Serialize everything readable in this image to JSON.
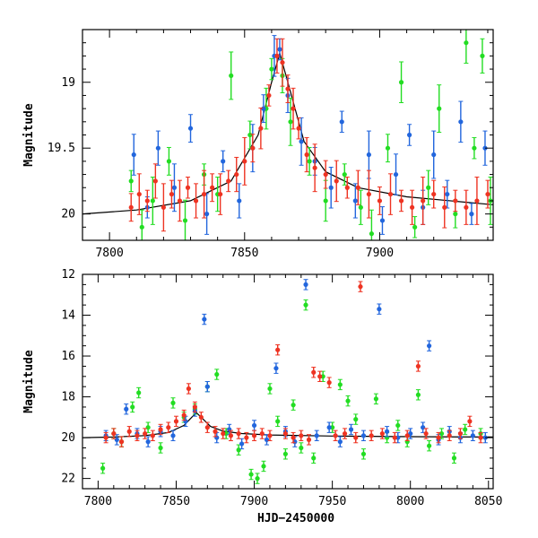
{
  "chart_data": [
    {
      "type": "scatter",
      "title": "",
      "xlabel": "",
      "ylabel": "Magnitude",
      "xlim": [
        7790,
        7942
      ],
      "ylim": [
        20.2,
        18.6
      ],
      "y_inverted": true,
      "xticks": [
        7800,
        7850,
        7900
      ],
      "yticks": [
        19,
        19.5,
        20
      ],
      "ytick_labels": [
        "19",
        "19.5",
        "20"
      ],
      "series": [
        {
          "color": "#22dd22",
          "description": "green photometry points with error bars",
          "points": [
            [
              7808,
              19.75
            ],
            [
              7812,
              20.1
            ],
            [
              7816,
              19.9
            ],
            [
              7822,
              19.6
            ],
            [
              7828,
              20.05
            ],
            [
              7835,
              19.7
            ],
            [
              7840,
              19.85
            ],
            [
              7845,
              18.95
            ],
            [
              7852,
              19.4
            ],
            [
              7858,
              19.2
            ],
            [
              7860,
              18.9
            ],
            [
              7864,
              18.95
            ],
            [
              7867,
              19.3
            ],
            [
              7874,
              19.6
            ],
            [
              7880,
              19.9
            ],
            [
              7887,
              19.7
            ],
            [
              7893,
              19.95
            ],
            [
              7897,
              20.15
            ],
            [
              7903,
              19.5
            ],
            [
              7908,
              19.0
            ],
            [
              7913,
              20.1
            ],
            [
              7918,
              19.8
            ],
            [
              7922,
              19.2
            ],
            [
              7928,
              20.0
            ],
            [
              7932,
              18.7
            ],
            [
              7935,
              19.5
            ],
            [
              7938,
              18.8
            ],
            [
              7941,
              19.9
            ]
          ]
        },
        {
          "color": "#2266dd",
          "description": "blue photometry points with error bars",
          "points": [
            [
              7809,
              19.55
            ],
            [
              7814,
              19.95
            ],
            [
              7818,
              19.5
            ],
            [
              7824,
              19.8
            ],
            [
              7830,
              19.35
            ],
            [
              7836,
              20.0
            ],
            [
              7842,
              19.6
            ],
            [
              7848,
              19.9
            ],
            [
              7853,
              19.5
            ],
            [
              7857,
              19.2
            ],
            [
              7861,
              18.8
            ],
            [
              7863,
              18.75
            ],
            [
              7866,
              19.1
            ],
            [
              7871,
              19.45
            ],
            [
              7876,
              19.6
            ],
            [
              7882,
              19.8
            ],
            [
              7886,
              19.3
            ],
            [
              7891,
              19.9
            ],
            [
              7896,
              19.55
            ],
            [
              7901,
              20.05
            ],
            [
              7906,
              19.7
            ],
            [
              7911,
              19.4
            ],
            [
              7916,
              19.95
            ],
            [
              7920,
              19.55
            ],
            [
              7925,
              19.85
            ],
            [
              7930,
              19.3
            ],
            [
              7934,
              20.0
            ],
            [
              7939,
              19.5
            ]
          ]
        },
        {
          "color": "#ee3322",
          "description": "red photometry points with error bars",
          "points": [
            [
              7808,
              19.95
            ],
            [
              7811,
              19.85
            ],
            [
              7814,
              19.9
            ],
            [
              7817,
              19.75
            ],
            [
              7820,
              19.95
            ],
            [
              7823,
              19.85
            ],
            [
              7826,
              19.9
            ],
            [
              7829,
              19.8
            ],
            [
              7832,
              19.9
            ],
            [
              7835,
              19.85
            ],
            [
              7838,
              19.8
            ],
            [
              7841,
              19.85
            ],
            [
              7844,
              19.75
            ],
            [
              7847,
              19.7
            ],
            [
              7850,
              19.6
            ],
            [
              7853,
              19.5
            ],
            [
              7856,
              19.35
            ],
            [
              7859,
              19.1
            ],
            [
              7862,
              18.8
            ],
            [
              7864,
              18.85
            ],
            [
              7866,
              19.05
            ],
            [
              7868,
              19.2
            ],
            [
              7870,
              19.35
            ],
            [
              7873,
              19.55
            ],
            [
              7876,
              19.65
            ],
            [
              7880,
              19.7
            ],
            [
              7884,
              19.75
            ],
            [
              7888,
              19.8
            ],
            [
              7892,
              19.8
            ],
            [
              7896,
              19.85
            ],
            [
              7900,
              19.9
            ],
            [
              7904,
              19.85
            ],
            [
              7908,
              19.9
            ],
            [
              7912,
              19.95
            ],
            [
              7916,
              19.9
            ],
            [
              7920,
              19.85
            ],
            [
              7924,
              19.95
            ],
            [
              7928,
              19.9
            ],
            [
              7932,
              19.95
            ],
            [
              7936,
              19.9
            ],
            [
              7940,
              19.85
            ]
          ]
        }
      ],
      "model_curve": [
        [
          7790,
          20.0
        ],
        [
          7810,
          19.97
        ],
        [
          7830,
          19.9
        ],
        [
          7845,
          19.75
        ],
        [
          7855,
          19.4
        ],
        [
          7860,
          19.0
        ],
        [
          7863,
          18.78
        ],
        [
          7866,
          19.0
        ],
        [
          7872,
          19.45
        ],
        [
          7880,
          19.68
        ],
        [
          7892,
          19.8
        ],
        [
          7910,
          19.87
        ],
        [
          7942,
          19.93
        ]
      ]
    },
    {
      "type": "scatter",
      "title": "",
      "xlabel": "HJD−2450000",
      "ylabel": "Magnitude",
      "xlim": [
        7790,
        8053
      ],
      "ylim": [
        22.5,
        12
      ],
      "y_inverted": true,
      "xticks": [
        7800,
        7850,
        7900,
        7950,
        8000,
        8050
      ],
      "yticks": [
        12,
        14,
        16,
        18,
        20,
        22
      ],
      "series": [
        {
          "color": "#22dd22",
          "description": "green photometry points",
          "points": [
            [
              7803,
              21.5
            ],
            [
              7810,
              19.8
            ],
            [
              7815,
              20.2
            ],
            [
              7822,
              18.5
            ],
            [
              7826,
              17.8
            ],
            [
              7832,
              19.5
            ],
            [
              7840,
              20.5
            ],
            [
              7848,
              18.3
            ],
            [
              7855,
              19.0
            ],
            [
              7862,
              18.6
            ],
            [
              7870,
              17.5
            ],
            [
              7876,
              16.9
            ],
            [
              7882,
              19.8
            ],
            [
              7890,
              20.6
            ],
            [
              7898,
              21.8
            ],
            [
              7902,
              22.0
            ],
            [
              7906,
              21.4
            ],
            [
              7910,
              17.6
            ],
            [
              7915,
              19.2
            ],
            [
              7920,
              20.8
            ],
            [
              7925,
              18.4
            ],
            [
              7930,
              20.5
            ],
            [
              7933,
              13.5
            ],
            [
              7938,
              21.0
            ],
            [
              7944,
              17.0
            ],
            [
              7950,
              19.5
            ],
            [
              7955,
              17.4
            ],
            [
              7960,
              18.2
            ],
            [
              7965,
              19.1
            ],
            [
              7970,
              20.8
            ],
            [
              7978,
              18.1
            ],
            [
              7985,
              20.0
            ],
            [
              7992,
              19.4
            ],
            [
              7998,
              20.2
            ],
            [
              8005,
              17.9
            ],
            [
              8012,
              20.4
            ],
            [
              8020,
              19.8
            ],
            [
              8028,
              21.0
            ],
            [
              8035,
              19.6
            ],
            [
              8045,
              19.8
            ]
          ]
        },
        {
          "color": "#2266dd",
          "description": "blue photometry points",
          "points": [
            [
              7805,
              19.9
            ],
            [
              7812,
              20.1
            ],
            [
              7818,
              18.6
            ],
            [
              7825,
              19.8
            ],
            [
              7832,
              20.2
            ],
            [
              7840,
              19.7
            ],
            [
              7848,
              19.9
            ],
            [
              7856,
              19.2
            ],
            [
              7862,
              18.7
            ],
            [
              7868,
              14.2
            ],
            [
              7870,
              17.5
            ],
            [
              7876,
              20.0
            ],
            [
              7884,
              19.6
            ],
            [
              7892,
              20.3
            ],
            [
              7900,
              19.4
            ],
            [
              7908,
              20.1
            ],
            [
              7914,
              16.6
            ],
            [
              7920,
              19.7
            ],
            [
              7926,
              20.2
            ],
            [
              7933,
              12.5
            ],
            [
              7940,
              19.9
            ],
            [
              7948,
              19.5
            ],
            [
              7955,
              20.2
            ],
            [
              7962,
              19.6
            ],
            [
              7970,
              19.9
            ],
            [
              7980,
              13.7
            ],
            [
              7985,
              19.7
            ],
            [
              7992,
              20.0
            ],
            [
              8000,
              19.8
            ],
            [
              8008,
              19.5
            ],
            [
              8012,
              15.5
            ],
            [
              8018,
              20.1
            ],
            [
              8025,
              19.7
            ],
            [
              8032,
              20.0
            ],
            [
              8040,
              19.9
            ],
            [
              8048,
              20.0
            ]
          ]
        },
        {
          "color": "#ee3322",
          "description": "red photometry points",
          "points": [
            [
              7805,
              20.0
            ],
            [
              7810,
              19.8
            ],
            [
              7815,
              20.2
            ],
            [
              7820,
              19.7
            ],
            [
              7825,
              19.9
            ],
            [
              7830,
              19.8
            ],
            [
              7835,
              19.9
            ],
            [
              7840,
              19.6
            ],
            [
              7845,
              19.5
            ],
            [
              7850,
              19.2
            ],
            [
              7855,
              18.9
            ],
            [
              7858,
              17.6
            ],
            [
              7862,
              18.5
            ],
            [
              7866,
              19.0
            ],
            [
              7870,
              19.5
            ],
            [
              7875,
              19.7
            ],
            [
              7880,
              19.8
            ],
            [
              7885,
              19.9
            ],
            [
              7890,
              19.8
            ],
            [
              7895,
              20.0
            ],
            [
              7900,
              19.9
            ],
            [
              7905,
              19.8
            ],
            [
              7910,
              19.9
            ],
            [
              7915,
              15.7
            ],
            [
              7920,
              19.8
            ],
            [
              7925,
              20.0
            ],
            [
              7930,
              19.9
            ],
            [
              7935,
              20.1
            ],
            [
              7938,
              16.8
            ],
            [
              7942,
              17.0
            ],
            [
              7948,
              17.3
            ],
            [
              7952,
              19.9
            ],
            [
              7958,
              19.8
            ],
            [
              7965,
              20.0
            ],
            [
              7968,
              12.6
            ],
            [
              7975,
              19.9
            ],
            [
              7982,
              19.8
            ],
            [
              7990,
              20.0
            ],
            [
              7998,
              19.9
            ],
            [
              8005,
              16.5
            ],
            [
              8010,
              19.8
            ],
            [
              8018,
              20.0
            ],
            [
              8025,
              19.9
            ],
            [
              8032,
              19.8
            ],
            [
              8038,
              19.2
            ],
            [
              8045,
              20.0
            ]
          ]
        }
      ],
      "model_curve": [
        [
          7790,
          20.0
        ],
        [
          7810,
          19.97
        ],
        [
          7830,
          19.9
        ],
        [
          7845,
          19.75
        ],
        [
          7855,
          19.4
        ],
        [
          7860,
          19.0
        ],
        [
          7863,
          18.78
        ],
        [
          7866,
          19.0
        ],
        [
          7872,
          19.45
        ],
        [
          7880,
          19.68
        ],
        [
          7892,
          19.8
        ],
        [
          7910,
          19.87
        ],
        [
          7950,
          19.92
        ],
        [
          8000,
          19.95
        ],
        [
          8053,
          19.97
        ]
      ]
    }
  ]
}
